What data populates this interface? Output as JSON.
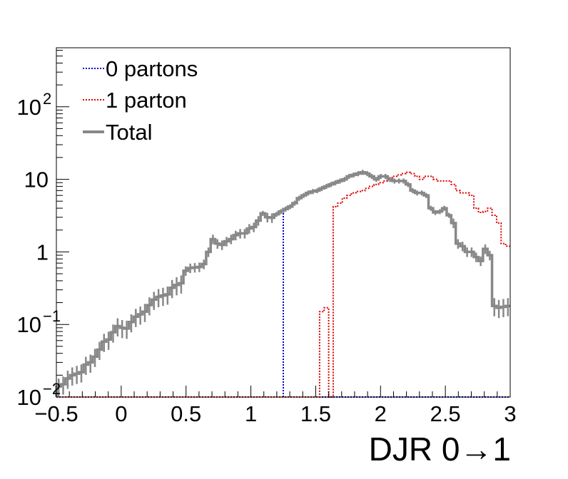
{
  "chart_data": {
    "type": "line",
    "style": "histogram-step",
    "xlabel": "DJR 0→1",
    "ylabel": "",
    "title": "",
    "xlim": [
      -0.5,
      3.0
    ],
    "ylim": [
      0.01,
      650
    ],
    "yscale": "log",
    "grid": false,
    "legend_position": "top-left",
    "x_ticks": [
      {
        "value": -0.5,
        "label": "−0.5"
      },
      {
        "value": 0,
        "label": "0"
      },
      {
        "value": 0.5,
        "label": "0.5"
      },
      {
        "value": 1,
        "label": "1"
      },
      {
        "value": 1.5,
        "label": "1.5"
      },
      {
        "value": 2,
        "label": "2"
      },
      {
        "value": 2.5,
        "label": "2.5"
      },
      {
        "value": 3,
        "label": "3"
      }
    ],
    "y_ticks": [
      {
        "value": 0.01,
        "base": "10",
        "exp": "−2"
      },
      {
        "value": 0.1,
        "base": "10",
        "exp": "−1"
      },
      {
        "value": 1,
        "base": "1",
        "exp": ""
      },
      {
        "value": 10,
        "base": "10",
        "exp": ""
      },
      {
        "value": 100,
        "base": "10",
        "exp": "2"
      }
    ],
    "bin_edges": [
      -0.5,
      3.0
    ],
    "n_bins": 100,
    "series": [
      {
        "name": "0 partons",
        "color": "#0000cc",
        "dash": "dotted",
        "values": [
          0.014,
          0.015,
          0.018,
          0.02,
          0.021,
          0.022,
          0.028,
          0.03,
          0.036,
          0.045,
          0.058,
          0.062,
          0.078,
          0.095,
          0.09,
          0.088,
          0.108,
          0.128,
          0.138,
          0.15,
          0.185,
          0.22,
          0.24,
          0.25,
          0.26,
          0.32,
          0.35,
          0.37,
          0.55,
          0.6,
          0.61,
          0.62,
          0.68,
          1.0,
          1.5,
          1.3,
          1.25,
          1.4,
          1.5,
          1.7,
          1.8,
          1.8,
          2.1,
          2.2,
          2.7,
          3.4,
          3.0,
          2.95,
          3.3,
          3.6,
          0.01,
          0.01,
          0.01,
          0.01,
          0.01,
          0.01,
          0.01,
          0.01,
          0.01,
          0.01,
          0.01,
          0.01,
          0.01,
          0.01,
          0.01,
          0.01,
          0.01,
          0.01,
          0.01,
          0.01,
          0.01,
          0.01,
          0.01,
          0.01,
          0.01,
          0.01,
          0.01,
          0.01,
          0.01,
          0.01,
          0.01,
          0.01,
          0.01,
          0.01,
          0.01,
          0.01,
          0.01,
          0.01,
          0.01,
          0.01,
          0.01,
          0.01,
          0.01,
          0.01,
          0.01,
          0.01,
          0.01,
          0.01,
          0.01,
          0.01
        ]
      },
      {
        "name": "1 parton",
        "color": "#dd0000",
        "dash": "dotted",
        "values": [
          0.01,
          0.01,
          0.01,
          0.01,
          0.01,
          0.01,
          0.01,
          0.01,
          0.01,
          0.01,
          0.01,
          0.01,
          0.01,
          0.01,
          0.01,
          0.01,
          0.01,
          0.01,
          0.01,
          0.01,
          0.01,
          0.01,
          0.01,
          0.01,
          0.01,
          0.01,
          0.01,
          0.01,
          0.01,
          0.01,
          0.01,
          0.01,
          0.01,
          0.01,
          0.01,
          0.01,
          0.01,
          0.01,
          0.01,
          0.01,
          0.01,
          0.01,
          0.01,
          0.01,
          0.01,
          0.01,
          0.01,
          0.01,
          0.01,
          0.01,
          0.01,
          0.01,
          0.01,
          0.01,
          0.01,
          0.01,
          0.01,
          0.01,
          0.15,
          0.17,
          0.01,
          4.2,
          4.7,
          5.5,
          6.0,
          6.5,
          6.8,
          7.0,
          7.5,
          8.0,
          8.5,
          9.0,
          9.5,
          10.0,
          11.0,
          11.5,
          12.0,
          12.5,
          12.0,
          11.0,
          10.0,
          11.0,
          11.0,
          10.0,
          9.5,
          9.5,
          9.5,
          8.5,
          7.0,
          6.5,
          6.5,
          6.0,
          4.0,
          3.5,
          3.6,
          4.0,
          3.2,
          2.5,
          1.3,
          1.2
        ]
      },
      {
        "name": "Total",
        "color": "#888888",
        "dash": "solid",
        "values": [
          0.014,
          0.015,
          0.018,
          0.02,
          0.021,
          0.022,
          0.028,
          0.03,
          0.036,
          0.045,
          0.058,
          0.062,
          0.078,
          0.095,
          0.09,
          0.088,
          0.108,
          0.128,
          0.138,
          0.15,
          0.185,
          0.22,
          0.24,
          0.25,
          0.26,
          0.32,
          0.35,
          0.37,
          0.55,
          0.6,
          0.61,
          0.62,
          0.68,
          1.0,
          1.5,
          1.3,
          1.25,
          1.4,
          1.5,
          1.7,
          1.8,
          1.8,
          2.1,
          2.2,
          2.7,
          3.4,
          3.0,
          2.95,
          3.3,
          3.6,
          3.9,
          4.2,
          4.7,
          5.5,
          6.0,
          6.5,
          6.8,
          7.0,
          7.5,
          8.0,
          8.5,
          9.0,
          9.5,
          10.0,
          11.0,
          11.5,
          12.0,
          12.5,
          12.0,
          11.0,
          10.0,
          11.0,
          11.0,
          10.0,
          9.5,
          9.5,
          9.5,
          8.5,
          7.0,
          6.5,
          6.5,
          6.0,
          4.0,
          3.5,
          3.6,
          4.0,
          3.2,
          2.5,
          1.3,
          1.2,
          1.0,
          1.0,
          0.85,
          0.75,
          1.1,
          0.9,
          0.18,
          0.17,
          0.175,
          0.18
        ]
      }
    ]
  }
}
